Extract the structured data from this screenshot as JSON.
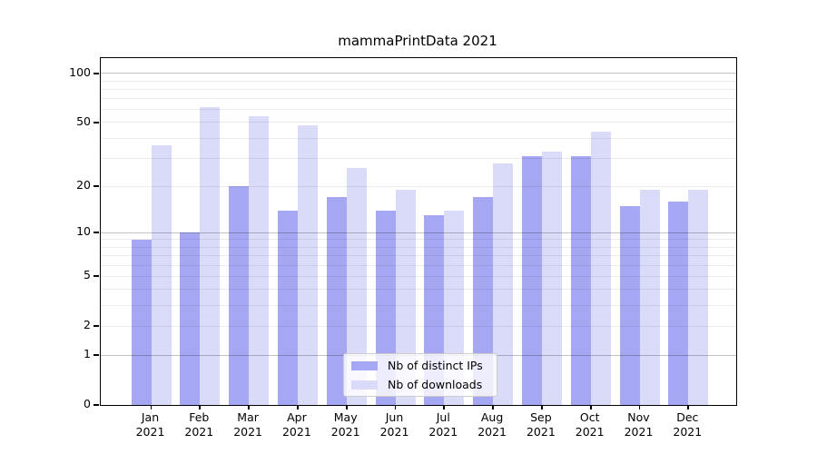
{
  "title": "mammaPrintData 2021",
  "chart_data": {
    "type": "bar",
    "title": "mammaPrintData 2021",
    "categories": [
      "Jan 2021",
      "Feb 2021",
      "Mar 2021",
      "Apr 2021",
      "May 2021",
      "Jun 2021",
      "Jul 2021",
      "Aug 2021",
      "Sep 2021",
      "Oct 2021",
      "Nov 2021",
      "Dec 2021"
    ],
    "month_labels": [
      "Jan",
      "Feb",
      "Mar",
      "Apr",
      "May",
      "Jun",
      "Jul",
      "Aug",
      "Sep",
      "Oct",
      "Nov",
      "Dec"
    ],
    "year_label": "2021",
    "series": [
      {
        "name": "Nb of distinct IPs",
        "color": "#a6a7f3",
        "values": [
          9,
          10,
          20,
          14,
          17,
          14,
          13,
          17,
          31,
          31,
          15,
          16
        ]
      },
      {
        "name": "Nb of downloads",
        "color": "#dadbf8",
        "values": [
          36,
          62,
          55,
          48,
          26,
          19,
          14,
          28,
          33,
          44,
          19,
          19
        ]
      }
    ],
    "xlabel": "",
    "ylabel": "",
    "yscale": "log1p",
    "ylim": [
      0,
      124
    ],
    "yticks": [
      0,
      1,
      2,
      5,
      10,
      20,
      50,
      100
    ],
    "grid_minor_values": [
      2,
      3,
      4,
      5,
      6,
      7,
      8,
      9,
      20,
      30,
      40,
      50,
      60,
      70,
      80,
      90
    ],
    "grid_major_values": [
      1,
      10,
      100
    ],
    "grid": "on",
    "legend_position": "lower center"
  },
  "legend": {
    "items": [
      {
        "label": "Nb of distinct IPs"
      },
      {
        "label": "Nb of downloads"
      }
    ]
  }
}
